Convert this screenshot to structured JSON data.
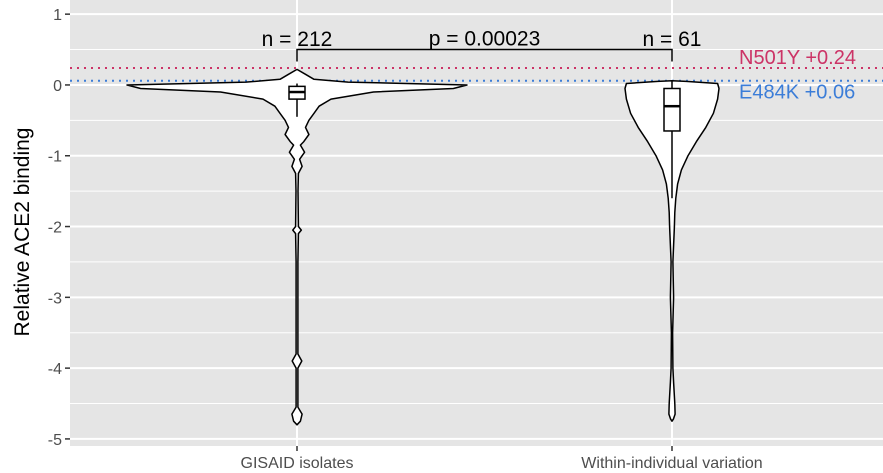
{
  "chart_data": {
    "type": "violin",
    "title": "",
    "xlabel": "",
    "ylabel": "Relative ACE2 binding",
    "ylim": [
      -5.1,
      1.2
    ],
    "yticks": [
      1,
      0,
      -1,
      -2,
      -3,
      -4,
      -5
    ],
    "ytick_labels": [
      "1",
      "0",
      "-1",
      "-2",
      "-3",
      "-4",
      "-5"
    ],
    "grid": true,
    "categories": [
      "GISAID isolates",
      "Within-individual variation"
    ],
    "groups": [
      {
        "name": "GISAID isolates",
        "n_label": "n = 212",
        "box": {
          "q1": -0.2,
          "median": -0.1,
          "q3": -0.02,
          "whisker_low": -0.45,
          "whisker_high": 0.02
        },
        "density": [
          [
            0.22,
            0.0
          ],
          [
            0.15,
            0.05
          ],
          [
            0.08,
            0.1
          ],
          [
            0.04,
            0.3
          ],
          [
            0.0,
            1.0
          ],
          [
            -0.05,
            0.92
          ],
          [
            -0.1,
            0.45
          ],
          [
            -0.2,
            0.2
          ],
          [
            -0.3,
            0.13
          ],
          [
            -0.4,
            0.1
          ],
          [
            -0.5,
            0.07
          ],
          [
            -0.6,
            0.05
          ],
          [
            -0.7,
            0.07
          ],
          [
            -0.8,
            0.04
          ],
          [
            -0.85,
            0.02
          ],
          [
            -0.95,
            0.045
          ],
          [
            -1.05,
            0.015
          ],
          [
            -1.15,
            0.03
          ],
          [
            -1.25,
            0.008
          ],
          [
            -1.5,
            0.006
          ],
          [
            -2.0,
            0.008
          ],
          [
            -2.05,
            0.025
          ],
          [
            -2.1,
            0.008
          ],
          [
            -2.5,
            0.005
          ],
          [
            -3.0,
            0.005
          ],
          [
            -3.8,
            0.005
          ],
          [
            -3.9,
            0.028
          ],
          [
            -4.0,
            0.005
          ],
          [
            -4.55,
            0.005
          ],
          [
            -4.65,
            0.03
          ],
          [
            -4.75,
            0.02
          ],
          [
            -4.8,
            0.0
          ]
        ]
      },
      {
        "name": "Within-individual variation",
        "n_label": "n = 61",
        "box": {
          "q1": -0.65,
          "median": -0.3,
          "q3": -0.05,
          "whisker_low": -1.6,
          "whisker_high": 0.05
        },
        "density": [
          [
            0.06,
            0.0
          ],
          [
            0.05,
            0.3
          ],
          [
            0.02,
            0.97
          ],
          [
            -0.05,
            1.0
          ],
          [
            -0.2,
            0.97
          ],
          [
            -0.4,
            0.88
          ],
          [
            -0.6,
            0.72
          ],
          [
            -0.8,
            0.52
          ],
          [
            -1.0,
            0.34
          ],
          [
            -1.2,
            0.2
          ],
          [
            -1.4,
            0.12
          ],
          [
            -1.6,
            0.08
          ],
          [
            -1.8,
            0.06
          ],
          [
            -2.0,
            0.05
          ],
          [
            -2.5,
            0.02
          ],
          [
            -3.0,
            0.035
          ],
          [
            -3.5,
            0.012
          ],
          [
            -4.0,
            0.02
          ],
          [
            -4.2,
            0.035
          ],
          [
            -4.5,
            0.06
          ],
          [
            -4.65,
            0.065
          ],
          [
            -4.72,
            0.03
          ],
          [
            -4.75,
            0.0
          ]
        ]
      }
    ],
    "comparison": {
      "label": "p = 0.00023",
      "y": 0.5
    },
    "reference_lines": [
      {
        "label": "N501Y +0.24",
        "y": 0.24,
        "color": "#cc3366"
      },
      {
        "label": "E484K +0.06",
        "y": 0.06,
        "color": "#3b7dd8"
      }
    ],
    "colors": {
      "panel": "#e5e5e5",
      "grid": "#ffffff",
      "violin_fill": "#ffffff",
      "stroke": "#000000",
      "axis_text": "#4d4d4d"
    }
  }
}
